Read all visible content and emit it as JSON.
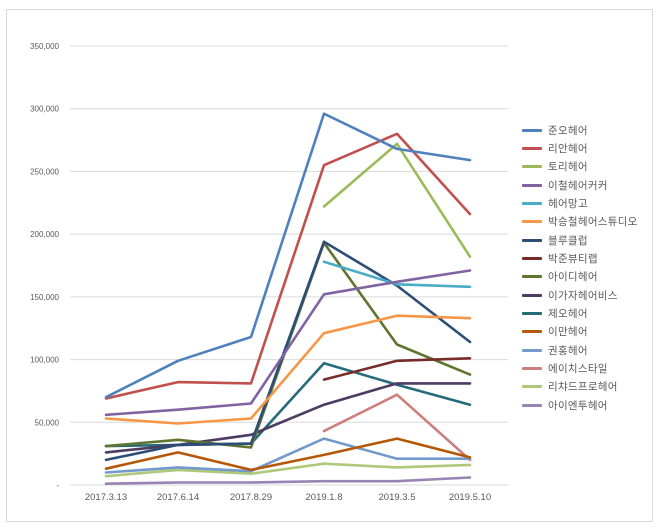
{
  "chart_data": {
    "type": "line",
    "title": "",
    "xlabel": "",
    "ylabel": "",
    "ylim": [
      0,
      350000
    ],
    "grid": true,
    "legend_position": "right",
    "y_ticks": [
      "350,000",
      "300,000",
      "250,000",
      "200,000",
      "150,000",
      "100,000",
      "50,000",
      "-"
    ],
    "y_tick_values": [
      350000,
      300000,
      250000,
      200000,
      150000,
      100000,
      50000,
      0
    ],
    "categories": [
      "2017.3.13",
      "2017.6.14",
      "2017.8.29",
      "2019.1.8",
      "2019.3.5",
      "2019.5.10"
    ],
    "series": [
      {
        "name": "준오헤어",
        "color": "#4f81bd",
        "values": [
          70000,
          99000,
          118000,
          296000,
          268000,
          259000
        ]
      },
      {
        "name": "리안헤어",
        "color": "#c0504d",
        "values": [
          69000,
          82000,
          81000,
          255000,
          280000,
          216000
        ]
      },
      {
        "name": "토리헤어",
        "color": "#9bbb59",
        "values": [
          null,
          null,
          null,
          222000,
          272000,
          182000
        ]
      },
      {
        "name": "이철헤어커커",
        "color": "#8064a2",
        "values": [
          56000,
          60000,
          65000,
          152000,
          162000,
          171000
        ]
      },
      {
        "name": "헤어망고",
        "color": "#4bacc6",
        "values": [
          null,
          null,
          null,
          178000,
          160000,
          158000
        ]
      },
      {
        "name": "박승철헤어스튜디오",
        "color": "#f79646",
        "values": [
          53000,
          49000,
          53000,
          121000,
          135000,
          133000
        ]
      },
      {
        "name": "블루클럽",
        "color": "#2c4d75",
        "values": [
          20000,
          32000,
          33000,
          194000,
          159000,
          114000
        ]
      },
      {
        "name": "박준뷰티랩",
        "color": "#772c2a",
        "values": [
          null,
          null,
          null,
          84000,
          99000,
          101000
        ]
      },
      {
        "name": "아이디헤어",
        "color": "#5f7530",
        "values": [
          31000,
          36000,
          30000,
          193000,
          112000,
          88000
        ]
      },
      {
        "name": "이가자헤어비스",
        "color": "#4d3b62",
        "values": [
          26000,
          32000,
          40000,
          64000,
          81000,
          81000
        ]
      },
      {
        "name": "제오헤어",
        "color": "#276a7c",
        "values": [
          31000,
          32000,
          33000,
          97000,
          80000,
          64000
        ]
      },
      {
        "name": "이만헤어",
        "color": "#b65708",
        "values": [
          13000,
          26000,
          12000,
          24000,
          37000,
          22000
        ]
      },
      {
        "name": "권홍헤어",
        "color": "#729aca",
        "values": [
          10000,
          14000,
          11000,
          37000,
          21000,
          21000
        ]
      },
      {
        "name": "에이치스타일",
        "color": "#cd7f7e",
        "values": [
          null,
          null,
          null,
          43000,
          72000,
          20000
        ]
      },
      {
        "name": "리챠드프로헤어",
        "color": "#afc97a",
        "values": [
          7000,
          12000,
          9000,
          17000,
          14000,
          16000
        ]
      },
      {
        "name": "아이엔투헤어",
        "color": "#9983b5",
        "values": [
          1000,
          2000,
          2000,
          3000,
          3000,
          6000
        ]
      }
    ]
  }
}
